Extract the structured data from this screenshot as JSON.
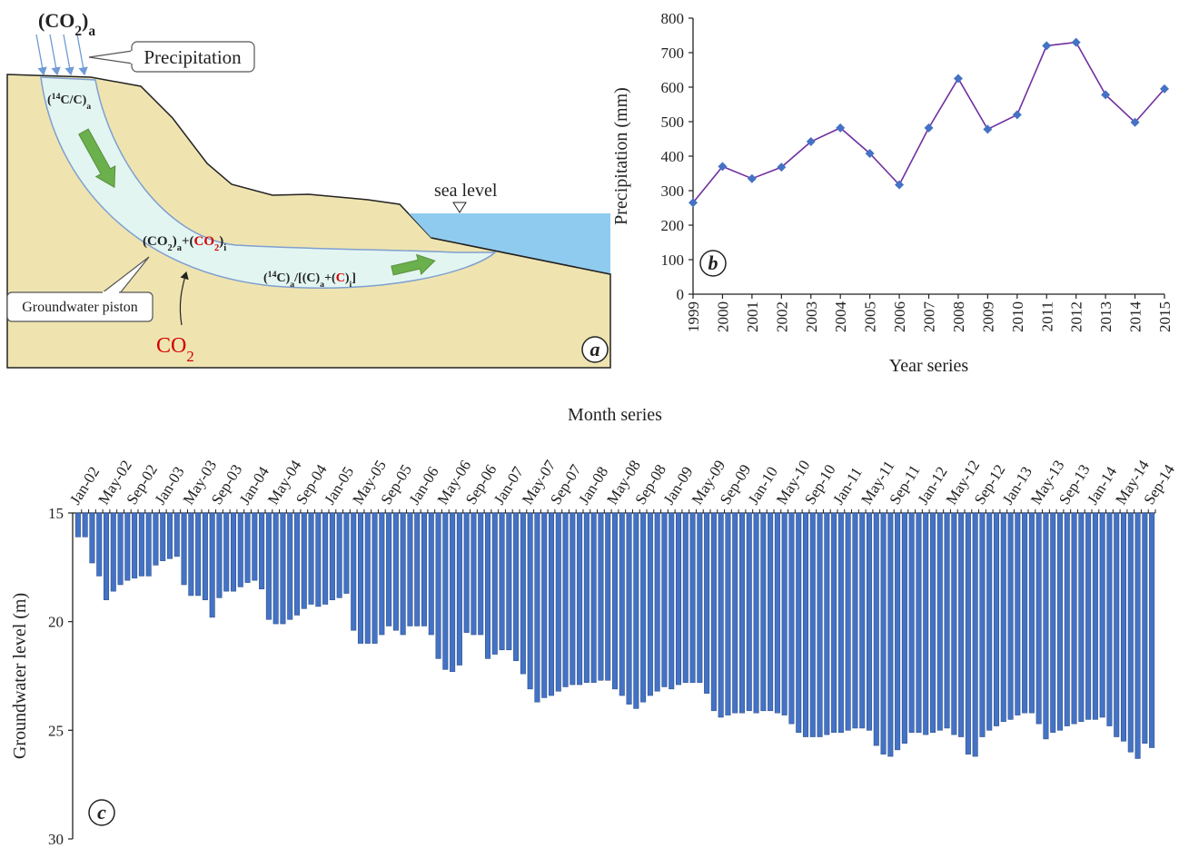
{
  "diagram": {
    "co2_atm": [
      "(CO",
      "2",
      ")",
      "a"
    ],
    "precipitation": "Precipitation",
    "c14_ratio": [
      "(",
      "14",
      "C/C)",
      "a"
    ],
    "sea_level": "sea level",
    "co2_mix": [
      "(CO",
      "2",
      ")",
      "a",
      "+(",
      "CO",
      "2",
      ")",
      "i"
    ],
    "c14_mix": [
      "(",
      "14",
      "C)",
      "a",
      "/[(C)",
      "a",
      "+(",
      "C",
      ")",
      "i",
      "]"
    ],
    "groundwater_piston": "Groundwater piston",
    "co2_input": [
      "CO",
      "2"
    ],
    "panel_label": "a"
  },
  "chart_data": [
    {
      "type": "line",
      "panel_label": "b",
      "x_label": "Year series",
      "y_label": "Precipitation (mm)",
      "categories": [
        "1999",
        "2000",
        "2001",
        "2002",
        "2003",
        "2004",
        "2005",
        "2006",
        "2007",
        "2008",
        "2009",
        "2010",
        "2011",
        "2012",
        "2013",
        "2014",
        "2015"
      ],
      "series": [
        {
          "color": "#7030a0",
          "marker_color": "#4472c4",
          "values": [
            265,
            370,
            335,
            368,
            442,
            482,
            408,
            317,
            482,
            625,
            478,
            520,
            720,
            730,
            578,
            498,
            595
          ]
        }
      ],
      "ylim": [
        0,
        800
      ],
      "yticks": [
        0,
        100,
        200,
        300,
        400,
        500,
        600,
        700,
        800
      ]
    },
    {
      "type": "bar",
      "panel_label": "c",
      "x_label": "Month series",
      "y_label": "Groundwater level (m)",
      "categories": [
        "Jan-02",
        null,
        null,
        null,
        "May-02",
        null,
        null,
        null,
        "Sep-02",
        null,
        null,
        null,
        "Jan-03",
        null,
        null,
        null,
        "May-03",
        null,
        null,
        null,
        "Sep-03",
        null,
        null,
        null,
        "Jan-04",
        null,
        null,
        null,
        "May-04",
        null,
        null,
        null,
        "Sep-04",
        null,
        null,
        null,
        "Jan-05",
        null,
        null,
        null,
        "May-05",
        null,
        null,
        null,
        "Sep-05",
        null,
        null,
        null,
        "Jan-06",
        null,
        null,
        null,
        "May-06",
        null,
        null,
        null,
        "Sep-06",
        null,
        null,
        null,
        "Jan-07",
        null,
        null,
        null,
        "May-07",
        null,
        null,
        null,
        "Sep-07",
        null,
        null,
        null,
        "Jan-08",
        null,
        null,
        null,
        "May-08",
        null,
        null,
        null,
        "Sep-08",
        null,
        null,
        null,
        "Jan-09",
        null,
        null,
        null,
        "May-09",
        null,
        null,
        null,
        "Sep-09",
        null,
        null,
        null,
        "Jan-10",
        null,
        null,
        null,
        "May-10",
        null,
        null,
        null,
        "Sep-10",
        null,
        null,
        null,
        "Jan-11",
        null,
        null,
        null,
        "May-11",
        null,
        null,
        null,
        "Sep-11",
        null,
        null,
        null,
        "Jan-12",
        null,
        null,
        null,
        "May-12",
        null,
        null,
        null,
        "Sep-12",
        null,
        null,
        null,
        "Jan-13",
        null,
        null,
        null,
        "May-13",
        null,
        null,
        null,
        "Sep-13",
        null,
        null,
        null,
        "Jan-14",
        null,
        null,
        null,
        "May-14",
        null,
        null,
        null,
        "Sep-14"
      ],
      "values": [
        16.1,
        16.1,
        17.3,
        17.9,
        19.0,
        18.6,
        18.3,
        18.1,
        18.0,
        17.9,
        17.9,
        17.4,
        17.2,
        17.1,
        17.0,
        18.3,
        18.8,
        18.8,
        19.0,
        19.8,
        18.9,
        18.6,
        18.6,
        18.4,
        18.2,
        18.1,
        18.5,
        19.9,
        20.1,
        20.1,
        19.9,
        19.7,
        19.4,
        19.2,
        19.3,
        19.2,
        19.0,
        18.9,
        18.7,
        20.4,
        21.0,
        21.0,
        21.0,
        20.6,
        20.2,
        20.4,
        20.6,
        20.2,
        20.2,
        20.2,
        20.6,
        21.7,
        22.2,
        22.3,
        22.0,
        20.5,
        20.6,
        20.6,
        21.7,
        21.5,
        21.3,
        21.3,
        21.8,
        22.4,
        23.1,
        23.7,
        23.5,
        23.4,
        23.2,
        23.0,
        22.9,
        22.9,
        22.8,
        22.8,
        22.7,
        22.7,
        23.1,
        23.4,
        23.8,
        24.0,
        23.7,
        23.4,
        23.2,
        23.0,
        23.1,
        22.9,
        22.8,
        22.8,
        22.8,
        23.3,
        24.1,
        24.4,
        24.3,
        24.2,
        24.2,
        24.1,
        24.2,
        24.1,
        24.1,
        24.2,
        24.3,
        24.7,
        25.1,
        25.3,
        25.3,
        25.3,
        25.2,
        25.1,
        25.1,
        25.0,
        24.9,
        24.9,
        25.0,
        25.7,
        26.1,
        26.2,
        25.9,
        25.6,
        25.1,
        25.1,
        25.2,
        25.1,
        25.0,
        24.9,
        25.2,
        25.3,
        26.1,
        26.2,
        25.3,
        25.0,
        24.8,
        24.6,
        24.5,
        24.3,
        24.2,
        24.2,
        24.7,
        25.4,
        25.1,
        25.0,
        24.8,
        24.7,
        24.6,
        24.5,
        24.5,
        24.4,
        24.8,
        25.3,
        25.5,
        26.0,
        26.3,
        25.6,
        25.8
      ],
      "color": "#4472c4",
      "ylim": [
        30,
        15
      ],
      "yticks": [
        15,
        20,
        25,
        30
      ]
    }
  ]
}
